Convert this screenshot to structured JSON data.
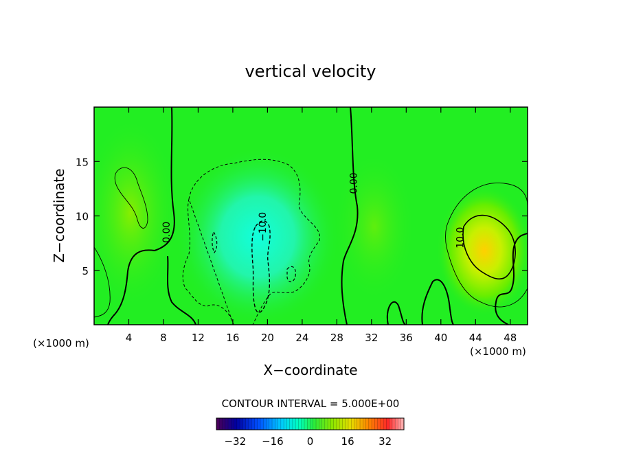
{
  "chart_data": {
    "type": "contour",
    "title": "vertical velocity",
    "xlabel": "X−coordinate",
    "ylabel": "Z−coordinate",
    "x_unit_left": "(×1000 m)",
    "x_unit_right": "(×1000 m)",
    "xlim": [
      0,
      50
    ],
    "ylim": [
      0,
      20
    ],
    "x_ticks": [
      4,
      8,
      12,
      16,
      20,
      24,
      28,
      32,
      36,
      40,
      44,
      48
    ],
    "y_ticks": [
      5,
      10,
      15
    ],
    "contour_labels": [
      {
        "text": "0.00",
        "x": 8.7,
        "y": 8.5,
        "rotate": -90
      },
      {
        "text": "0.00",
        "x": 30.3,
        "y": 13.0,
        "rotate": -90
      },
      {
        "text": "−10.0",
        "x": 19.8,
        "y": 9.0,
        "rotate": -90
      },
      {
        "text": "10.0",
        "x": 42.6,
        "y": 8.0,
        "rotate": -90
      }
    ],
    "contour_interval_text": "CONTOUR INTERVAL = 5.000E+00",
    "colorbar": {
      "range": [
        -40,
        40
      ],
      "tick_values": [
        -32,
        -16,
        0,
        16,
        32
      ],
      "tick_labels": [
        "−32",
        "−16",
        "0",
        "16",
        "32"
      ]
    },
    "background_color": "#22ee22",
    "legend": "none",
    "grid": false
  }
}
